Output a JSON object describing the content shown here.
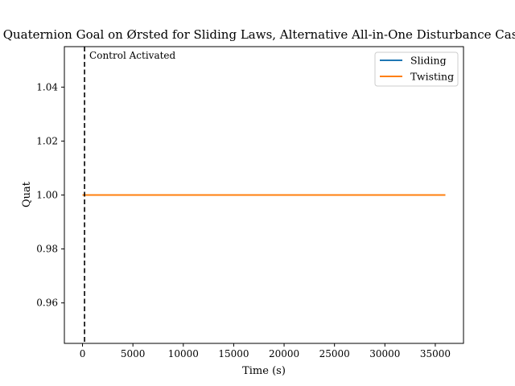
{
  "chart_data": {
    "type": "line",
    "title": "Quaternion Goal on Ørsted for Sliding Laws, Alternative All-in-One Disturbance Case",
    "xlabel": "Time (s)",
    "ylabel": "Quat",
    "xlim": [
      -1800,
      37800
    ],
    "ylim": [
      0.945,
      1.055
    ],
    "xticks": [
      0,
      5000,
      10000,
      15000,
      20000,
      25000,
      30000,
      35000
    ],
    "yticks": [
      0.96,
      0.98,
      1.0,
      1.02,
      1.04
    ],
    "xtick_labels": [
      "0",
      "5000",
      "10000",
      "15000",
      "20000",
      "25000",
      "30000",
      "35000"
    ],
    "ytick_labels": [
      "0.96",
      "0.98",
      "1.00",
      "1.02",
      "1.04"
    ],
    "grid": false,
    "legend_position": "top-right",
    "series": [
      {
        "name": "Sliding",
        "color": "#1f77b4",
        "x": [
          0,
          36000
        ],
        "y": [
          1.0,
          1.0
        ]
      },
      {
        "name": "Twisting",
        "color": "#ff7f0e",
        "x": [
          0,
          36000
        ],
        "y": [
          1.0,
          1.0
        ]
      }
    ],
    "vline": {
      "x": 200,
      "color": "#000000",
      "style": "dashed",
      "label": "Control Activated"
    }
  }
}
